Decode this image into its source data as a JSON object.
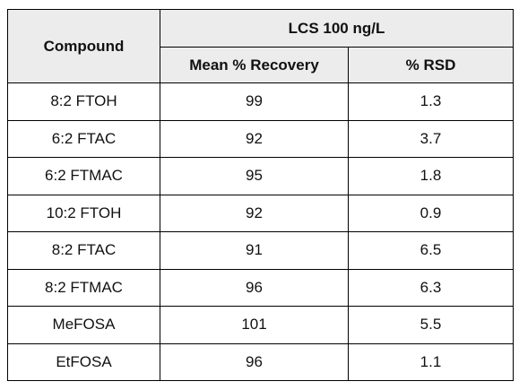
{
  "table": {
    "header": {
      "compound": "Compound",
      "group": "LCS 100 ng/L",
      "columns": [
        "Mean % Recovery",
        "% RSD"
      ]
    },
    "rows": [
      [
        "8:2 FTOH",
        99,
        1.3
      ],
      [
        "6:2 FTAC",
        92,
        3.7
      ],
      [
        "6:2 FTMAC",
        95,
        1.8
      ],
      [
        "10:2 FTOH",
        92,
        0.9
      ],
      [
        "8:2 FTAC",
        91,
        6.5
      ],
      [
        "8:2 FTMAC",
        96,
        6.3
      ],
      [
        "MeFOSA",
        101,
        5.5
      ],
      [
        "EtFOSA",
        96,
        1.1
      ]
    ]
  }
}
